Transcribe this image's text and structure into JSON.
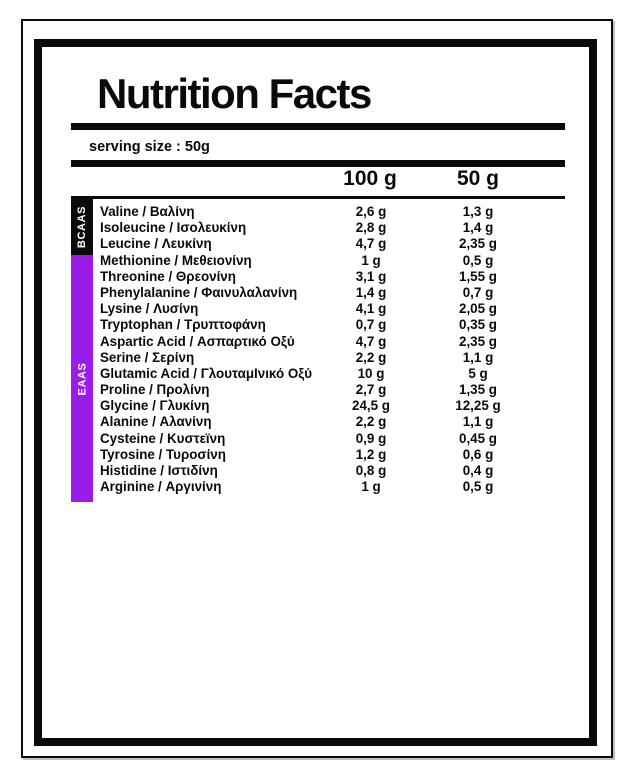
{
  "label": {
    "title": "Nutrition Facts",
    "serving_size": "serving size : 50g",
    "columns": [
      "100 g",
      "50 g"
    ],
    "colors": {
      "black": "#0a0a0a",
      "eaas_purple": "#9b1be9"
    },
    "sections": [
      {
        "name": "BCAAS",
        "color": "#0a0a0a",
        "row_span": 3
      },
      {
        "name": "EAAS",
        "color": "#9b1be9",
        "row_span": 15
      }
    ],
    "rows": [
      {
        "name": "Valine / Βαλίνη",
        "per_100g": "2,6 g",
        "per_50g": "1,3 g"
      },
      {
        "name": "Isoleucine / Ισολευκίνη",
        "per_100g": "2,8 g",
        "per_50g": "1,4 g"
      },
      {
        "name": "Leucine / Λευκίνη",
        "per_100g": "4,7 g",
        "per_50g": "2,35 g"
      },
      {
        "name": "Methionine / Μεθειονίνη",
        "per_100g": "1 g",
        "per_50g": "0,5 g"
      },
      {
        "name": "Threonine / Θρεονίνη",
        "per_100g": "3,1 g",
        "per_50g": "1,55 g"
      },
      {
        "name": "Phenylalanine / Φαινυλαλανίνη",
        "per_100g": "1,4 g",
        "per_50g": "0,7 g"
      },
      {
        "name": "Lysine / Λυσίνη",
        "per_100g": "4,1 g",
        "per_50g": "2,05 g"
      },
      {
        "name": "Tryptophan / Τρυπτοφάνη",
        "per_100g": "0,7 g",
        "per_50g": "0,35 g"
      },
      {
        "name": "Aspartic Acid / Ασπαρτικό Οξύ",
        "per_100g": "4,7 g",
        "per_50g": "2,35 g"
      },
      {
        "name": "Serine / Σερίνη",
        "per_100g": "2,2 g",
        "per_50g": "1,1 g"
      },
      {
        "name": "Glutamic Acid / ΓλουταμΙνικό Οξύ",
        "per_100g": "10 g",
        "per_50g": "5 g"
      },
      {
        "name": "Proline / Προλίνη",
        "per_100g": "2,7 g",
        "per_50g": "1,35 g"
      },
      {
        "name": "Glycine / Γλυκίνη",
        "per_100g": "24,5 g",
        "per_50g": "12,25 g"
      },
      {
        "name": "Alanine / Αλανίνη",
        "per_100g": "2,2 g",
        "per_50g": "1,1 g"
      },
      {
        "name": "Cysteine / Κυστεϊνη",
        "per_100g": "0,9 g",
        "per_50g": "0,45 g"
      },
      {
        "name": "Tyrosine / Τυροσίνη",
        "per_100g": "1,2 g",
        "per_50g": "0,6 g"
      },
      {
        "name": "Histidine / Ιστιδίνη",
        "per_100g": "0,8 g",
        "per_50g": "0,4 g"
      },
      {
        "name": "Arginine / Αργινίνη",
        "per_100g": "1 g",
        "per_50g": "0,5 g"
      }
    ]
  }
}
